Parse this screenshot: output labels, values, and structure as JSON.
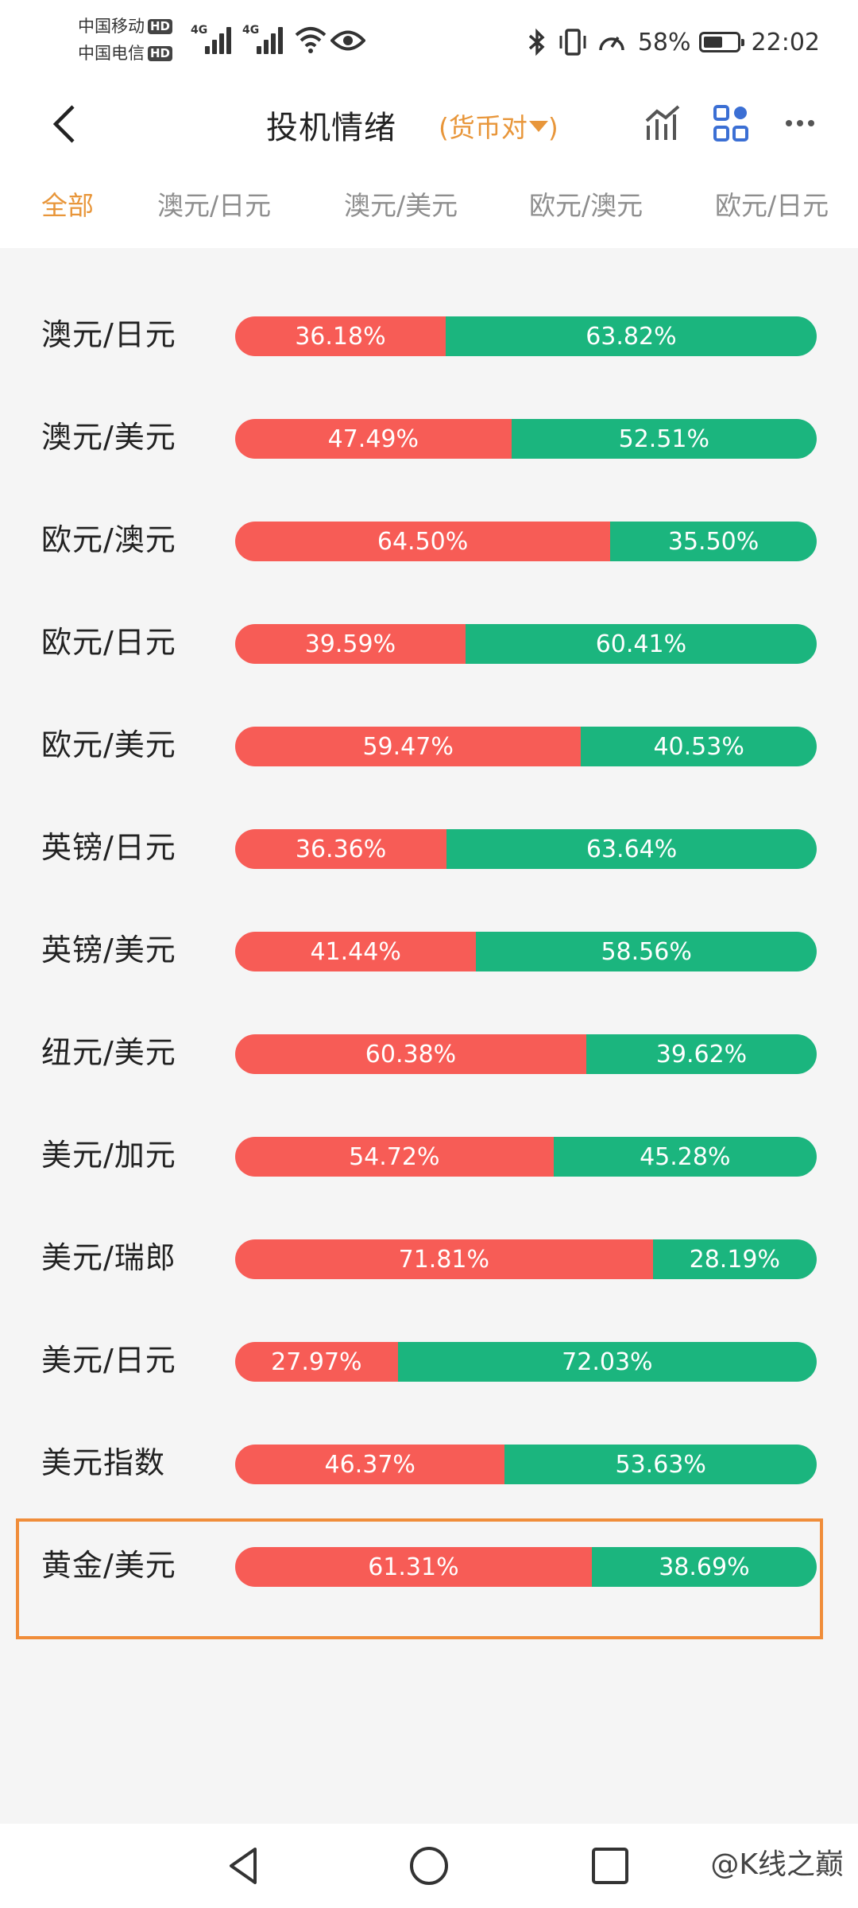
{
  "status_bar": {
    "carrier1": "中国移动",
    "carrier2": "中国电信",
    "hd": "HD",
    "net1": "4G",
    "net2": "4G",
    "battery": "58%",
    "battery_level": 0.58,
    "time": "22:02"
  },
  "header": {
    "title": "投机情绪",
    "filter_label": "货币对"
  },
  "tabs": [
    "全部",
    "澳元/日元",
    "澳元/美元",
    "欧元/澳元",
    "欧元/日元"
  ],
  "active_tab": 0,
  "rows": [
    {
      "name": "澳元/日元",
      "long": 36.18,
      "short": 63.82,
      "long_label": "36.18%",
      "short_label": "63.82%"
    },
    {
      "name": "澳元/美元",
      "long": 47.49,
      "short": 52.51,
      "long_label": "47.49%",
      "short_label": "52.51%"
    },
    {
      "name": "欧元/澳元",
      "long": 64.5,
      "short": 35.5,
      "long_label": "64.50%",
      "short_label": "35.50%"
    },
    {
      "name": "欧元/日元",
      "long": 39.59,
      "short": 60.41,
      "long_label": "39.59%",
      "short_label": "60.41%"
    },
    {
      "name": "欧元/美元",
      "long": 59.47,
      "short": 40.53,
      "long_label": "59.47%",
      "short_label": "40.53%"
    },
    {
      "name": "英镑/日元",
      "long": 36.36,
      "short": 63.64,
      "long_label": "36.36%",
      "short_label": "63.64%"
    },
    {
      "name": "英镑/美元",
      "long": 41.44,
      "short": 58.56,
      "long_label": "41.44%",
      "short_label": "58.56%"
    },
    {
      "name": "纽元/美元",
      "long": 60.38,
      "short": 39.62,
      "long_label": "60.38%",
      "short_label": "39.62%"
    },
    {
      "name": "美元/加元",
      "long": 54.72,
      "short": 45.28,
      "long_label": "54.72%",
      "short_label": "45.28%"
    },
    {
      "name": "美元/瑞郎",
      "long": 71.81,
      "short": 28.19,
      "long_label": "71.81%",
      "short_label": "28.19%"
    },
    {
      "name": "美元/日元",
      "long": 27.97,
      "short": 72.03,
      "long_label": "27.97%",
      "short_label": "72.03%"
    },
    {
      "name": "美元指数",
      "long": 46.37,
      "short": 53.63,
      "long_label": "46.37%",
      "short_label": "53.63%"
    },
    {
      "name": "黄金/美元",
      "long": 61.31,
      "short": 38.69,
      "long_label": "61.31%",
      "short_label": "38.69%"
    }
  ],
  "highlighted_row": 12,
  "colors": {
    "long": "#f75c56",
    "short": "#1bb57e",
    "accent": "#e8963a",
    "highlight_border": "#f08d3a"
  },
  "watermark": "@K线之巅",
  "icons": [
    "back-icon",
    "caret-down-icon",
    "chart-icon",
    "grid-icon",
    "more-icon",
    "nav-back-icon",
    "nav-home-icon",
    "nav-recents-icon"
  ]
}
